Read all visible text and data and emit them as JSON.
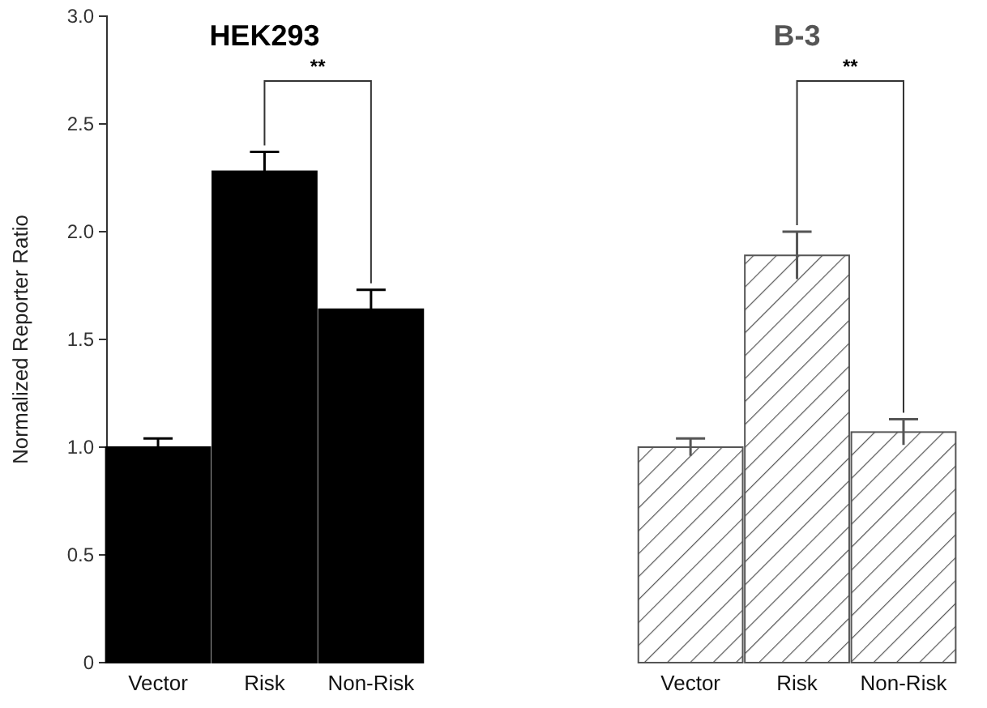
{
  "chart_data": {
    "type": "bar",
    "ylabel": "Normalized Reporter Ratio",
    "categories": [
      "Vector",
      "Risk",
      "Non-Risk",
      null,
      null,
      "Vector",
      "Risk",
      "Non-Risk"
    ],
    "series": [
      {
        "name": "HEK293",
        "color": "#000000",
        "values": [
          1.0,
          2.28,
          1.64,
          null,
          null,
          null,
          null,
          null
        ],
        "errors": [
          0.04,
          0.09,
          0.09,
          null,
          null,
          null,
          null,
          null
        ]
      },
      {
        "name": "B-3",
        "color": "#555555",
        "values": [
          null,
          null,
          null,
          null,
          null,
          1.0,
          1.89,
          1.07
        ],
        "errors": [
          null,
          null,
          null,
          null,
          null,
          0.04,
          0.11,
          0.06
        ]
      }
    ],
    "ylim": [
      0,
      3
    ],
    "yticks": [
      0,
      {
        "value": 0.5,
        "label": "0.5"
      },
      {
        "value": 1,
        "label": "1.0"
      },
      {
        "value": 1.5,
        "label": "1.5"
      },
      {
        "value": 2,
        "label": "2.0"
      },
      {
        "value": 2.5,
        "label": "2.5"
      },
      {
        "value": 3,
        "label": "3.0"
      }
    ],
    "annotations": [
      "**",
      "**"
    ],
    "grid": false
  }
}
